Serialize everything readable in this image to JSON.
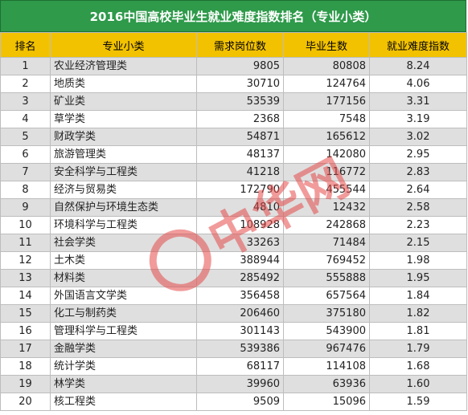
{
  "title": "2016中国高校毕业生就业难度指数排名（专业小类）",
  "headers": [
    "排名",
    "专业小类",
    "需求岗位数",
    "毕业生数",
    "就业难度指数"
  ],
  "rows": [
    {
      "rank": "1",
      "major": "农业经济管理类",
      "demand": "9805",
      "grads": "80808",
      "index": "8.24"
    },
    {
      "rank": "2",
      "major": "地质类",
      "demand": "30710",
      "grads": "124764",
      "index": "4.06"
    },
    {
      "rank": "3",
      "major": "矿业类",
      "demand": "53539",
      "grads": "177156",
      "index": "3.31"
    },
    {
      "rank": "4",
      "major": "草学类",
      "demand": "2368",
      "grads": "7548",
      "index": "3.19"
    },
    {
      "rank": "5",
      "major": "财政学类",
      "demand": "54871",
      "grads": "165612",
      "index": "3.02"
    },
    {
      "rank": "6",
      "major": "旅游管理类",
      "demand": "48137",
      "grads": "142080",
      "index": "2.95"
    },
    {
      "rank": "7",
      "major": "安全科学与工程类",
      "demand": "41218",
      "grads": "116772",
      "index": "2.83"
    },
    {
      "rank": "8",
      "major": "经济与贸易类",
      "demand": "172790",
      "grads": "455544",
      "index": "2.64"
    },
    {
      "rank": "9",
      "major": "自然保护与环境生态类",
      "demand": "4810",
      "grads": "12432",
      "index": "2.58"
    },
    {
      "rank": "10",
      "major": "环境科学与工程类",
      "demand": "108928",
      "grads": "242868",
      "index": "2.23"
    },
    {
      "rank": "11",
      "major": "社会学类",
      "demand": "33263",
      "grads": "71484",
      "index": "2.15"
    },
    {
      "rank": "12",
      "major": "土木类",
      "demand": "388944",
      "grads": "769452",
      "index": "1.98"
    },
    {
      "rank": "13",
      "major": "材料类",
      "demand": "285492",
      "grads": "555888",
      "index": "1.95"
    },
    {
      "rank": "14",
      "major": "外国语言文学类",
      "demand": "356458",
      "grads": "657564",
      "index": "1.84"
    },
    {
      "rank": "15",
      "major": "化工与制药类",
      "demand": "206460",
      "grads": "375180",
      "index": "1.82"
    },
    {
      "rank": "16",
      "major": "管理科学与工程类",
      "demand": "301143",
      "grads": "543900",
      "index": "1.81"
    },
    {
      "rank": "17",
      "major": "金融学类",
      "demand": "539386",
      "grads": "967476",
      "index": "1.79"
    },
    {
      "rank": "18",
      "major": "统计学类",
      "demand": "68117",
      "grads": "114108",
      "index": "1.68"
    },
    {
      "rank": "19",
      "major": "林学类",
      "demand": "39960",
      "grads": "63936",
      "index": "1.60"
    },
    {
      "rank": "20",
      "major": "核工程类",
      "demand": "9509",
      "grads": "15096",
      "index": "1.59"
    }
  ],
  "watermark": {
    "text": "中华网",
    "color": "#e64b4b"
  },
  "colors": {
    "title_bg": "#2e9a4a",
    "header_bg": "#f2c200",
    "stripe": "#dfdfdf"
  }
}
